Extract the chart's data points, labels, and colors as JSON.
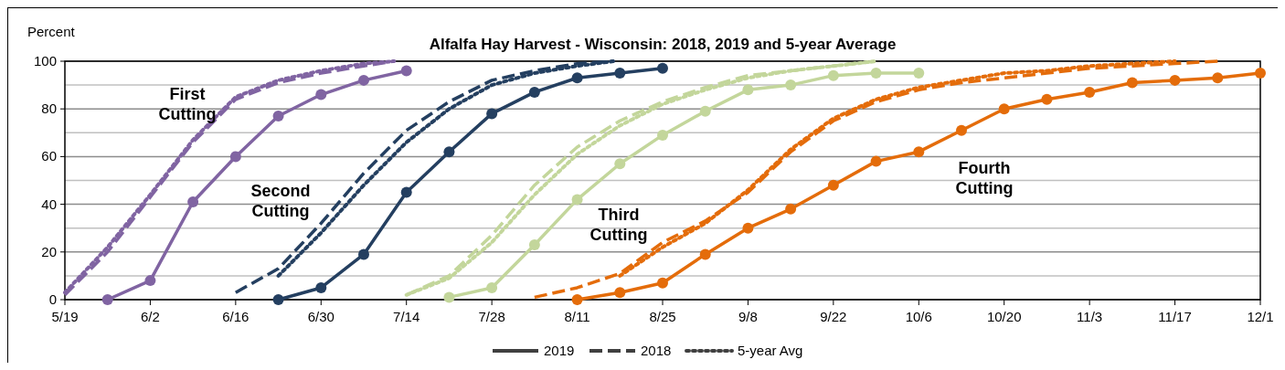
{
  "chart_data": {
    "type": "line",
    "title": "Alfalfa Hay Harvest - Wisconsin:  2018, 2019 and 5-year Average",
    "ylabel": "Percent",
    "xlim": [
      "--05-19",
      "--12-01"
    ],
    "xticks": [
      {
        "value": "--05-19",
        "label": "5/19"
      },
      {
        "value": "--06-02",
        "label": "6/2"
      },
      {
        "value": "--06-16",
        "label": "6/16"
      },
      {
        "value": "--06-30",
        "label": "6/30"
      },
      {
        "value": "--07-14",
        "label": "7/14"
      },
      {
        "value": "--07-28",
        "label": "7/28"
      },
      {
        "value": "--08-11",
        "label": "8/11"
      },
      {
        "value": "--08-25",
        "label": "8/25"
      },
      {
        "value": "--09-08",
        "label": "9/8"
      },
      {
        "value": "--09-22",
        "label": "9/22"
      },
      {
        "value": "--10-06",
        "label": "10/6"
      },
      {
        "value": "--10-20",
        "label": "10/20"
      },
      {
        "value": "--11-03",
        "label": "11/3"
      },
      {
        "value": "--11-17",
        "label": "11/17"
      },
      {
        "value": "--12-01",
        "label": "12/1"
      }
    ],
    "ylim": [
      0,
      100
    ],
    "yticks": [
      0,
      20,
      40,
      60,
      80,
      100
    ],
    "grid": "y",
    "series": [
      {
        "color": "#8064a2",
        "line_style": "solid",
        "marker": "circle",
        "x": [
          "--05-26",
          "--06-02",
          "--06-09",
          "--06-16",
          "--06-23",
          "--06-30",
          "--07-07",
          "--07-14"
        ],
        "values": [
          0,
          8,
          41,
          60,
          77,
          86,
          92,
          96
        ]
      },
      {
        "color": "#8064a2",
        "line_style": "dashed",
        "marker": "none",
        "x": [
          "--05-19",
          "--05-26",
          "--06-02",
          "--06-09",
          "--06-16",
          "--06-23",
          "--06-30",
          "--07-07",
          "--07-12"
        ],
        "values": [
          2,
          20,
          43,
          66,
          84,
          91,
          95,
          98,
          100
        ]
      },
      {
        "color": "#8064a2",
        "line_style": "dotted",
        "marker": "none",
        "x": [
          "--05-19",
          "--05-26",
          "--06-02",
          "--06-09",
          "--06-16",
          "--06-23",
          "--06-30",
          "--07-07",
          "--07-12"
        ],
        "values": [
          3,
          22,
          44,
          67,
          85,
          92,
          96,
          99,
          100
        ]
      },
      {
        "color": "#243f60",
        "line_style": "solid",
        "marker": "circle",
        "x": [
          "--06-23",
          "--06-30",
          "--07-07",
          "--07-14",
          "--07-21",
          "--07-28",
          "--08-04",
          "--08-11",
          "--08-18",
          "--08-25"
        ],
        "values": [
          0,
          5,
          19,
          45,
          62,
          78,
          87,
          93,
          95,
          97
        ]
      },
      {
        "color": "#243f60",
        "line_style": "dashed",
        "marker": "none",
        "x": [
          "--06-16",
          "--06-23",
          "--06-30",
          "--07-07",
          "--07-14",
          "--07-21",
          "--07-28",
          "--08-04",
          "--08-11",
          "--08-17"
        ],
        "values": [
          3,
          13,
          32,
          53,
          71,
          83,
          92,
          96,
          99,
          100
        ]
      },
      {
        "color": "#243f60",
        "line_style": "dotted",
        "marker": "none",
        "x": [
          "--06-23",
          "--06-30",
          "--07-07",
          "--07-14",
          "--07-21",
          "--07-28",
          "--08-04",
          "--08-11",
          "--08-17"
        ],
        "values": [
          10,
          28,
          48,
          66,
          80,
          90,
          95,
          98,
          100
        ]
      },
      {
        "color": "#c3d69b",
        "line_style": "solid",
        "marker": "circle",
        "x": [
          "--07-21",
          "--07-28",
          "--08-04",
          "--08-11",
          "--08-18",
          "--08-25",
          "--09-01",
          "--09-08",
          "--09-15",
          "--09-22",
          "--09-29",
          "--10-06"
        ],
        "values": [
          1,
          5,
          23,
          42,
          57,
          69,
          79,
          88,
          90,
          94,
          95,
          95
        ]
      },
      {
        "color": "#c3d69b",
        "line_style": "dashed",
        "marker": "none",
        "x": [
          "--07-14",
          "--07-21",
          "--07-28",
          "--08-04",
          "--08-11",
          "--08-18",
          "--08-25",
          "--09-01",
          "--09-08",
          "--09-15",
          "--09-22",
          "--09-29"
        ],
        "values": [
          2,
          10,
          27,
          48,
          64,
          75,
          83,
          89,
          94,
          96,
          98,
          100
        ]
      },
      {
        "color": "#c3d69b",
        "line_style": "dotted",
        "marker": "none",
        "x": [
          "--07-14",
          "--07-21",
          "--07-28",
          "--08-04",
          "--08-11",
          "--08-18",
          "--08-25",
          "--09-01",
          "--09-08",
          "--09-15",
          "--09-22",
          "--09-29"
        ],
        "values": [
          2,
          9,
          24,
          44,
          61,
          73,
          82,
          88,
          93,
          96,
          98,
          100
        ]
      },
      {
        "color": "#e46c0a",
        "line_style": "solid",
        "marker": "circle",
        "x": [
          "--08-11",
          "--08-18",
          "--08-25",
          "--09-01",
          "--09-08",
          "--09-15",
          "--09-22",
          "--09-29",
          "--10-06",
          "--10-13",
          "--10-20",
          "--10-27",
          "--11-03",
          "--11-10",
          "--11-17",
          "--11-24",
          "--12-01"
        ],
        "values": [
          0,
          3,
          7,
          19,
          30,
          38,
          48,
          58,
          62,
          71,
          80,
          84,
          87,
          91,
          92,
          93,
          95
        ]
      },
      {
        "color": "#e46c0a",
        "line_style": "dashed",
        "marker": "none",
        "x": [
          "--08-04",
          "--08-11",
          "--08-18",
          "--08-25",
          "--09-01",
          "--09-08",
          "--09-15",
          "--09-22",
          "--09-29",
          "--10-06",
          "--10-13",
          "--10-20",
          "--10-27",
          "--11-03",
          "--11-10",
          "--11-17",
          "--11-24"
        ],
        "values": [
          1,
          5,
          11,
          24,
          33,
          45,
          62,
          75,
          83,
          88,
          91,
          93,
          95,
          97,
          98,
          99,
          100
        ]
      },
      {
        "color": "#e46c0a",
        "line_style": "dotted",
        "marker": "none",
        "x": [
          "--08-18",
          "--08-25",
          "--09-01",
          "--09-08",
          "--09-15",
          "--09-22",
          "--09-29",
          "--10-06",
          "--10-13",
          "--10-20",
          "--10-27",
          "--11-03",
          "--11-10",
          "--11-17"
        ],
        "values": [
          10,
          22,
          32,
          46,
          63,
          76,
          84,
          89,
          92,
          95,
          96,
          98,
          99,
          100
        ]
      }
    ],
    "annotations": [
      "First Cutting",
      "Second Cutting",
      "Third Cutting",
      "Fourth Cutting",
      "2019",
      "2018",
      "5-year Avg"
    ]
  }
}
